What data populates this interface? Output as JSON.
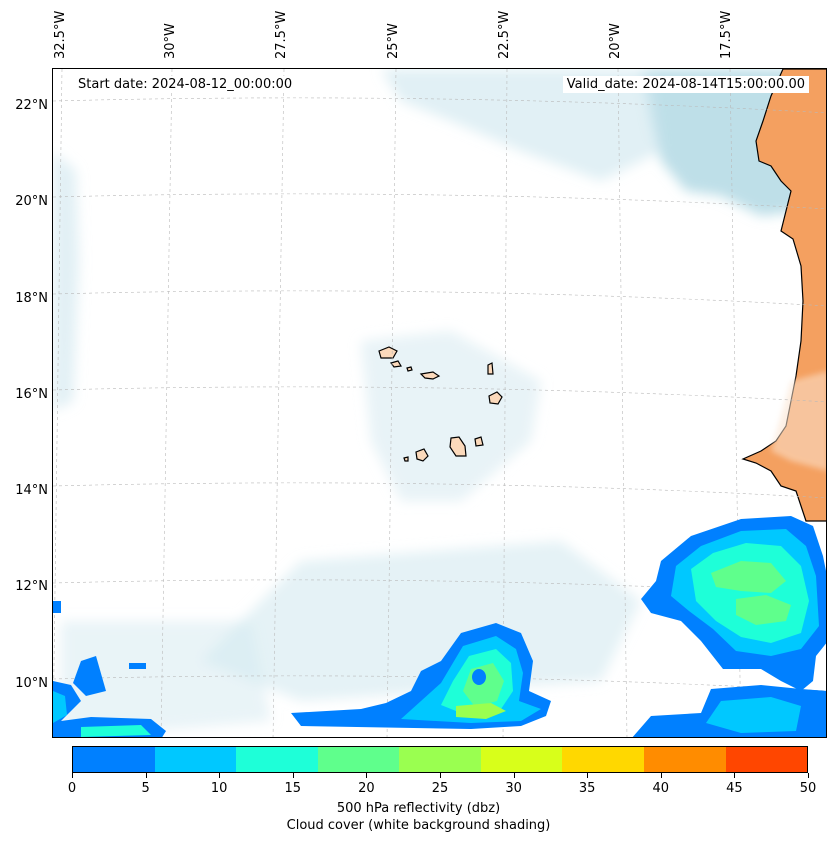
{
  "header": {
    "start_date": "Start date: 2024-08-12_00:00:00",
    "valid_date": "Valid_date: 2024-08-14T15:00:00.00"
  },
  "axes": {
    "lon_labels": [
      "32.5°W",
      "30°W",
      "27.5°W",
      "25°W",
      "22.5°W",
      "20°W",
      "17.5°W"
    ],
    "lat_labels": [
      "22°N",
      "20°N",
      "18°N",
      "16°N",
      "14°N",
      "12°N",
      "10°N"
    ]
  },
  "colorbar": {
    "colors": [
      "#0080ff",
      "#00c8ff",
      "#1effd8",
      "#5fff8c",
      "#9aff50",
      "#d8ff1a",
      "#ffd800",
      "#ff8c00",
      "#ff4600"
    ],
    "ticks": [
      "0",
      "5",
      "10",
      "15",
      "20",
      "25",
      "30",
      "35",
      "40",
      "45",
      "50"
    ],
    "title": "500 hPa reflectivity (dbz)",
    "subtitle": "Cloud cover (white background shading)"
  },
  "colors": {
    "land": "#f4a060",
    "cloud": "#a8d4e0",
    "coast": "#000000"
  }
}
